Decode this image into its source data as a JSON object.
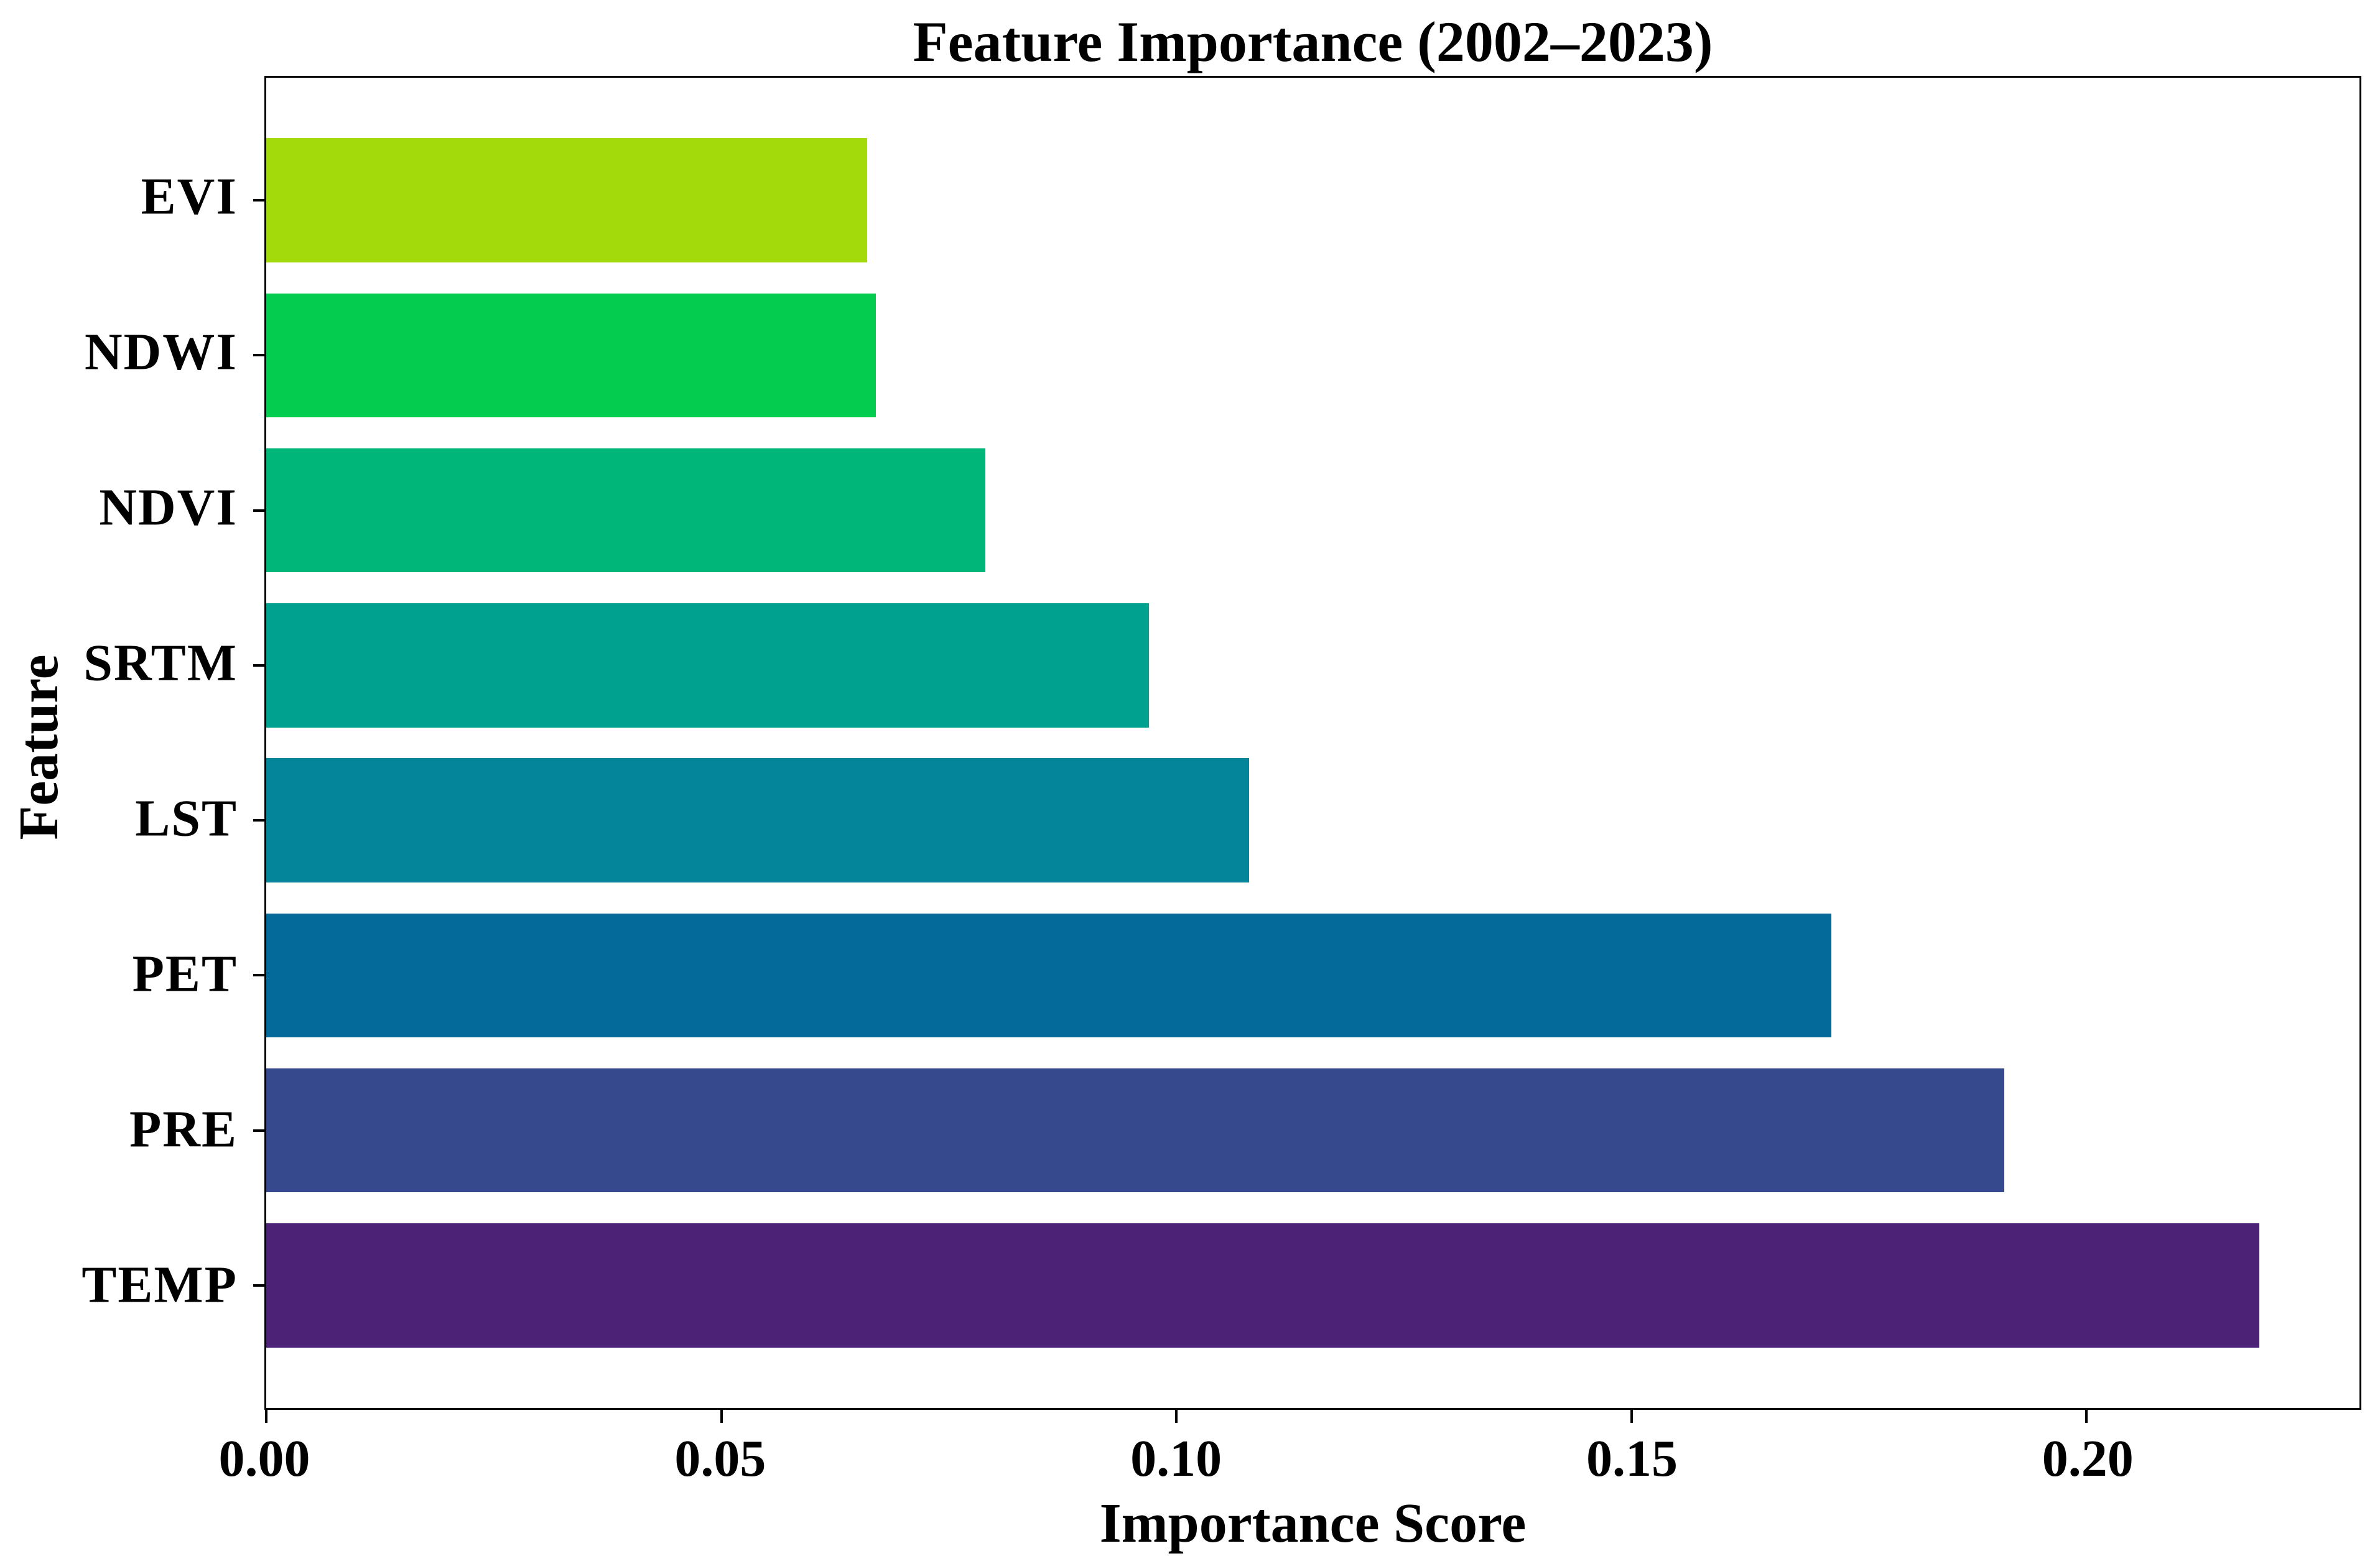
{
  "title": "Feature Importance (2002–2023)",
  "axes": {
    "xlabel": "Importance Score",
    "ylabel": "Feature"
  },
  "colors": {
    "background": "#ffffff",
    "axis": "#000000",
    "text": "#000000"
  },
  "chart_data": {
    "type": "bar",
    "orientation": "horizontal",
    "title": "Feature Importance (2002–2023)",
    "xlabel": "Importance Score",
    "ylabel": "Feature",
    "categories_top_to_bottom": [
      "EVI",
      "NDWI",
      "NDVI",
      "SRTM",
      "LST",
      "PET",
      "PRE",
      "TEMP"
    ],
    "values_top_to_bottom": [
      0.066,
      0.067,
      0.079,
      0.097,
      0.108,
      0.172,
      0.191,
      0.219
    ],
    "bar_colors_top_to_bottom": [
      "#a3da0c",
      "#03cc4e",
      "#00b678",
      "#00a28f",
      "#048599",
      "#036a99",
      "#36498c",
      "#4c2277"
    ],
    "xlim": [
      0,
      0.23
    ],
    "xticks": [
      0,
      0.05,
      0.1,
      0.15,
      0.2
    ],
    "xtick_labels": [
      "0.00",
      "0.05",
      "0.10",
      "0.15",
      "0.20"
    ],
    "grid": false,
    "legend": null,
    "bar_relative_height": 0.8,
    "y_edge_margin_units": 0.39
  }
}
